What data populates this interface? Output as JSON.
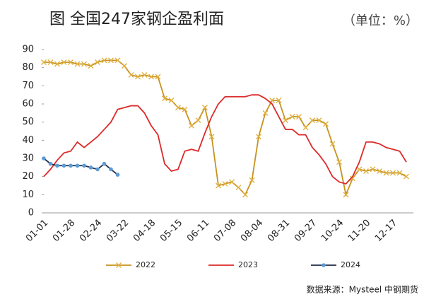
{
  "chart_data": {
    "type": "line",
    "title": "图 全国247家钢企盈利面",
    "subtitle": "（单位：%）",
    "source": "数据来源：Mysteel 中钢期货",
    "categories": [
      "01-01",
      null,
      null,
      null,
      "01-28",
      null,
      null,
      null,
      "02-24",
      null,
      null,
      null,
      "03-22",
      null,
      null,
      null,
      "04-18",
      null,
      null,
      null,
      "05-15",
      null,
      null,
      null,
      "06-11",
      null,
      null,
      null,
      "07-08",
      null,
      null,
      null,
      "08-04",
      null,
      null,
      null,
      "08-31",
      null,
      null,
      null,
      "09-27",
      null,
      null,
      null,
      "10-24",
      null,
      null,
      null,
      "11-20",
      null,
      null,
      null,
      "12-17",
      null,
      null
    ],
    "series": [
      {
        "name": "2022",
        "color": "#c8921e",
        "marker": "x",
        "marker_color": "#e0b040",
        "values": [
          83,
          83,
          82,
          83,
          83,
          82,
          82,
          81,
          83,
          84,
          84,
          84,
          81,
          76,
          75,
          76,
          75,
          75,
          63,
          62,
          58,
          57,
          48,
          51,
          58,
          42,
          15,
          16,
          17,
          14,
          10,
          18,
          42,
          55,
          62,
          62,
          51,
          53,
          53,
          47,
          51,
          51,
          49,
          38,
          28,
          10,
          19,
          24,
          23,
          24,
          23,
          22,
          22,
          22,
          20
        ]
      },
      {
        "name": "2023",
        "color": "#dd2a2a",
        "marker": "none",
        "marker_color": "#dd2a2a",
        "values": [
          20,
          24,
          29,
          33,
          34,
          39,
          36,
          39,
          42,
          46,
          50,
          57,
          58,
          59,
          59,
          55,
          48,
          43,
          27,
          23,
          24,
          34,
          35,
          34,
          44,
          53,
          60,
          64,
          64,
          64,
          64,
          65,
          65,
          63,
          60,
          53,
          46,
          46,
          43,
          43,
          36,
          32,
          27,
          20,
          17,
          16,
          20,
          28,
          39,
          39,
          38,
          36,
          35,
          34,
          28
        ]
      },
      {
        "name": "2024",
        "color": "#1f2a44",
        "marker": "circle",
        "marker_color": "#5b9bd5",
        "values": [
          30,
          27,
          26,
          26,
          26,
          26,
          26,
          25,
          24,
          27,
          24,
          21,
          null,
          null,
          null,
          null,
          null,
          null,
          null,
          null,
          null,
          null,
          null,
          null,
          null,
          null,
          null,
          null,
          null,
          null,
          null,
          null,
          null,
          null,
          null,
          null,
          null,
          null,
          null,
          null,
          null,
          null,
          null,
          null,
          null,
          null,
          null,
          null,
          null,
          null,
          null,
          null,
          null,
          null,
          null
        ]
      }
    ],
    "ylim": [
      0,
      90
    ],
    "yticks": [
      0,
      10,
      20,
      30,
      40,
      50,
      60,
      70,
      80,
      90
    ],
    "grid": false,
    "legend": "bottom"
  }
}
